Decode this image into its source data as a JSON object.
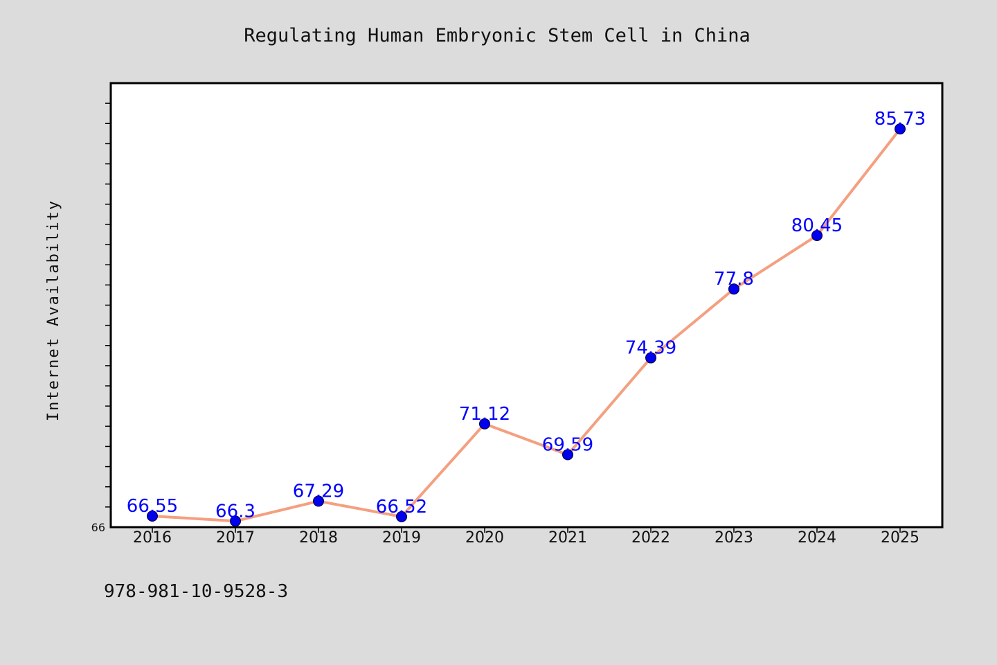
{
  "chart_data": {
    "type": "line",
    "title": "Regulating Human Embryonic Stem Cell in China",
    "xlabel": "",
    "ylabel": "Internet Availability",
    "categories": [
      "2016",
      "2017",
      "2018",
      "2019",
      "2020",
      "2021",
      "2022",
      "2023",
      "2024",
      "2025"
    ],
    "series": [
      {
        "name": "",
        "values": [
          66.55,
          66.3,
          67.29,
          66.52,
          71.12,
          69.59,
          74.39,
          77.8,
          80.45,
          85.73
        ],
        "data_labels": [
          "66.55",
          "66.3",
          "67.29",
          "66.52",
          "71.12",
          "69.59",
          "74.39",
          "77.8",
          "80.45",
          "85.73"
        ]
      }
    ],
    "ylim": [
      66,
      88
    ],
    "y_tick_labels": [
      "66"
    ],
    "grid": false,
    "line_color": "#f4a080",
    "marker_color": "#0000ee",
    "label_color": "#0000ff",
    "background_color": "#dcdcdc",
    "plot_background_color": "#ffffff"
  },
  "footer": {
    "text": "978-981-10-9528-3"
  }
}
